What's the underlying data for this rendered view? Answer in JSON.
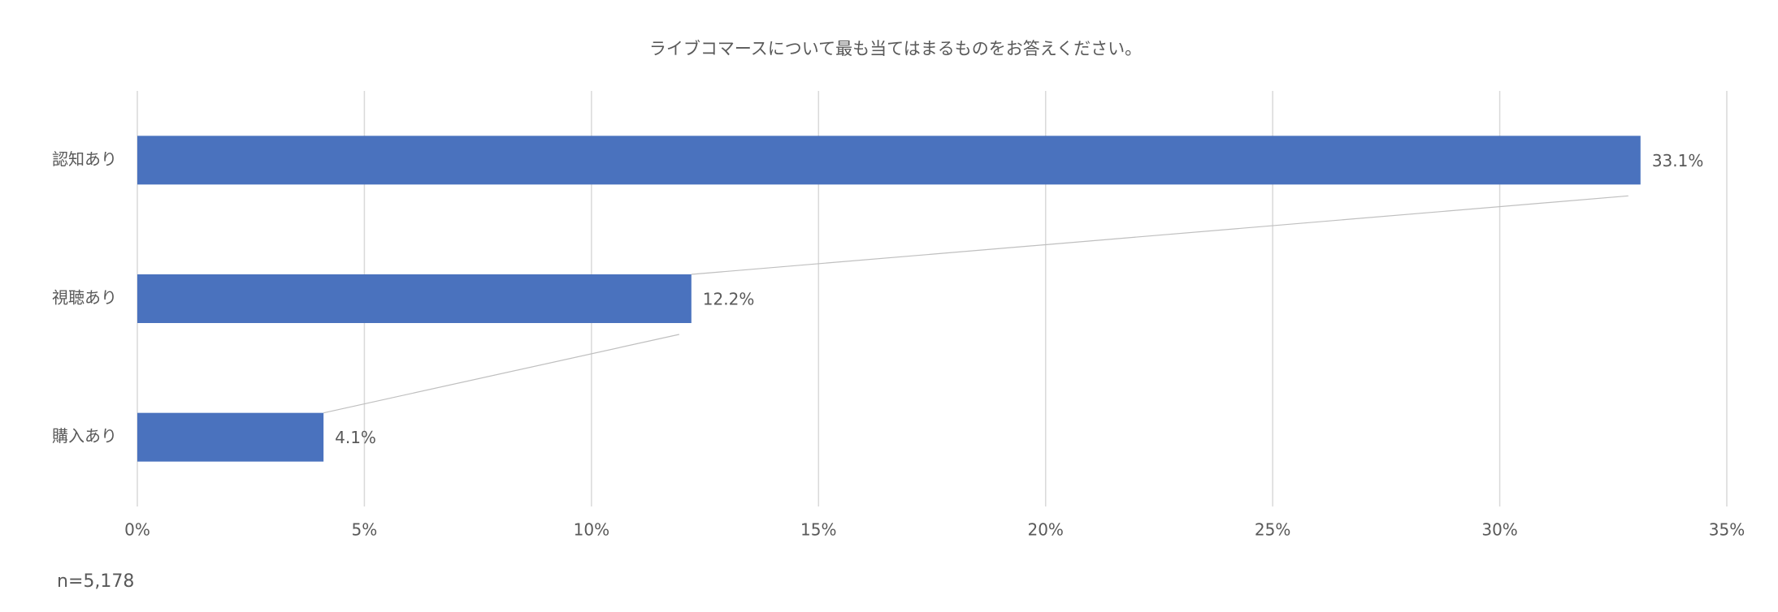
{
  "chart_data": {
    "type": "bar",
    "orientation": "horizontal",
    "title": "ライブコマースについて最も当てはまるものをお答えください。",
    "categories": [
      "認知あり",
      "視聴あり",
      "購入あり"
    ],
    "values": [
      33.1,
      12.2,
      4.1
    ],
    "value_labels": [
      "33.1%",
      "12.2%",
      "4.1%"
    ],
    "color": "#4a72be",
    "xlim": [
      0,
      35
    ],
    "xticks": [
      {
        "value": 0,
        "label": "0%"
      },
      {
        "value": 5,
        "label": "5%"
      },
      {
        "value": 10,
        "label": "10%"
      },
      {
        "value": 15,
        "label": "15%"
      },
      {
        "value": 20,
        "label": "20%"
      },
      {
        "value": 25,
        "label": "25%"
      },
      {
        "value": 30,
        "label": "30%"
      },
      {
        "value": 35,
        "label": "35%"
      }
    ],
    "grid": true,
    "annotation": "n=5,178"
  }
}
